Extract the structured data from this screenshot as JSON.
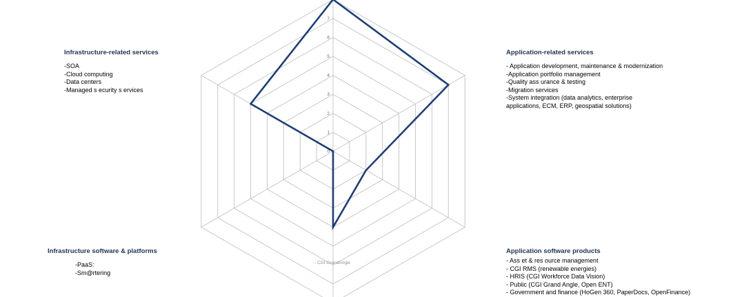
{
  "chart_data": {
    "type": "radar",
    "axes": [
      {
        "label": "",
        "value": 8,
        "details": []
      },
      {
        "label": "Application-related services",
        "value": 7,
        "details": [
          "- Application development, maintenance & modernization",
          "-Application portfolio management",
          "-Quality ass urance & testing",
          "-Migration services",
          "-System integration (data analytics,  enterprise",
          "applications, ECM, ERP, geospatial solutions)"
        ]
      },
      {
        "label": "Application software products",
        "value": 2,
        "details": [
          "- Ass et & res ource management",
          "- CGI RMS (renewable energies)",
          "- HRIS (CGI Workforce Data Vision)",
          "- Public (CGI Grand Angle, Open ENT)",
          "- Government and finance (HoGen 360, PaperDocs, OpenFinance)"
        ]
      },
      {
        "label": "",
        "value": 4,
        "details": []
      },
      {
        "label": "Infrastructure software & platforms",
        "value": 0,
        "details": [
          "-PaaS:",
          "-Sm@rtering"
        ]
      },
      {
        "label": "Infrastructure-related services",
        "value": 5,
        "details": [
          "-SOA",
          "-Cloud computing",
          "-Data centers",
          "-Managed s ecurity s ervices"
        ]
      }
    ],
    "scale": {
      "min": 0,
      "max": 8,
      "ticks": [
        0,
        1,
        2,
        3,
        4,
        5,
        6,
        7
      ]
    },
    "annotations": [
      "- CGI GrandAngle"
    ],
    "series_color": "#1e3f73",
    "grid_color": "#c8c8c8"
  }
}
